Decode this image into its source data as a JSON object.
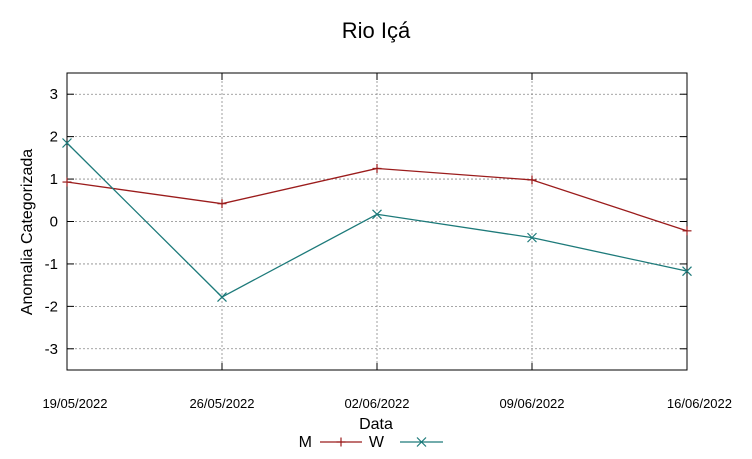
{
  "chart_data": {
    "type": "line",
    "title": "Rio Içá",
    "xlabel": "Data",
    "ylabel": "Anomalia Categorizada",
    "categories": [
      "19/05/2022",
      "26/05/2022",
      "02/06/2022",
      "09/06/2022",
      "16/06/2022"
    ],
    "yticks": [
      "3",
      "2",
      "1",
      "0",
      "-1",
      "-2",
      "-3"
    ],
    "ylim": [
      -3.5,
      3.5
    ],
    "grid": true,
    "legend_position": "bottom",
    "series": [
      {
        "name": "M",
        "values": [
          0.93,
          0.42,
          1.25,
          0.98,
          -0.22
        ],
        "color": "#9b1c1c",
        "marker": "plus"
      },
      {
        "name": "W",
        "values": [
          1.85,
          -1.78,
          0.17,
          -0.38,
          -1.17
        ],
        "color": "#1d7a7a",
        "marker": "cross"
      }
    ]
  }
}
